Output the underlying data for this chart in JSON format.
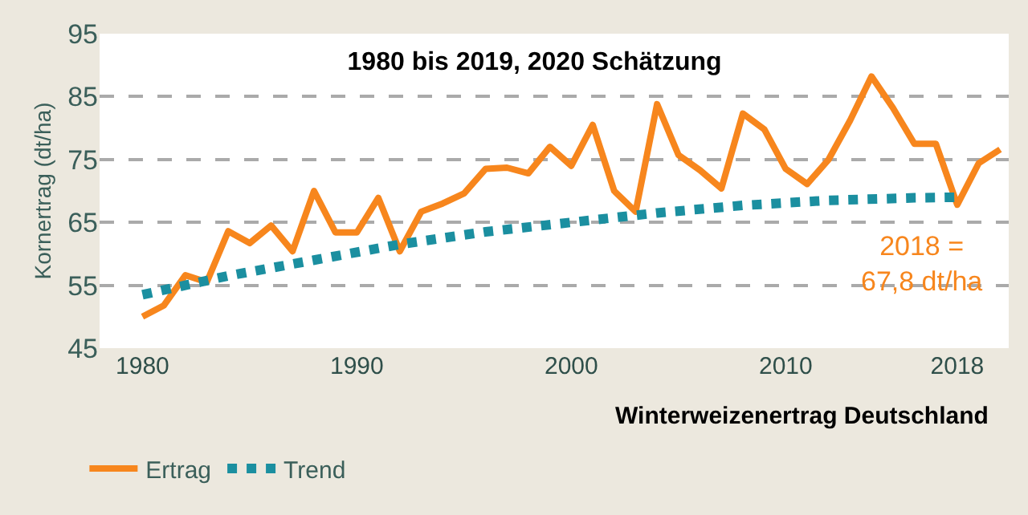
{
  "chart_data": {
    "type": "line",
    "title": "1980 bis 2019, 2020 Schätzung",
    "ylabel": "Kornertrag (dt/ha)",
    "xlim": [
      1978,
      2020.4
    ],
    "xticks": [
      1980,
      1990,
      2000,
      2010,
      2018
    ],
    "ylim": [
      45,
      95
    ],
    "yticks": [
      45,
      55,
      65,
      75,
      85,
      95
    ],
    "grid": "y",
    "legend": "bottom left",
    "series": [
      {
        "name": "Ertrag",
        "color": "#f7861d",
        "line_style": "solid",
        "x": [
          1980,
          1981,
          1982,
          1983,
          1984,
          1985,
          1986,
          1987,
          1988,
          1989,
          1990,
          1991,
          1992,
          1993,
          1994,
          1995,
          1996,
          1997,
          1998,
          1999,
          2000,
          2001,
          2002,
          2003,
          2004,
          2005,
          2006,
          2007,
          2008,
          2009,
          2010,
          2011,
          2012,
          2013,
          2014,
          2015,
          2016,
          2017,
          2018,
          2019,
          2020
        ],
        "values": [
          50.0,
          51.8,
          56.6,
          55.5,
          63.6,
          61.7,
          64.5,
          60.4,
          70.0,
          63.4,
          63.4,
          68.9,
          60.4,
          66.7,
          68.0,
          69.6,
          73.5,
          73.7,
          72.8,
          77.0,
          74.0,
          80.5,
          70.0,
          66.7,
          83.8,
          75.7,
          73.3,
          70.4,
          82.3,
          79.8,
          73.5,
          71.1,
          75.0,
          81.2,
          88.2,
          83.2,
          77.5,
          77.5,
          67.8,
          74.4,
          76.6
        ]
      },
      {
        "name": "Trend",
        "color": "#1b8fa0",
        "line_style": "dotted",
        "x": [
          1980,
          1984,
          1988,
          1992,
          1996,
          2000,
          2004,
          2008,
          2012,
          2016,
          2018
        ],
        "values": [
          53.5,
          56.5,
          59.0,
          61.5,
          63.5,
          65.0,
          66.5,
          67.7,
          68.5,
          68.9,
          69.0
        ]
      }
    ],
    "annotations": [
      {
        "text": "2018 =\n67,8 dt/ha",
        "x": 2018,
        "y": 67.8
      },
      "Winterweizenertrag Deutschland"
    ]
  }
}
